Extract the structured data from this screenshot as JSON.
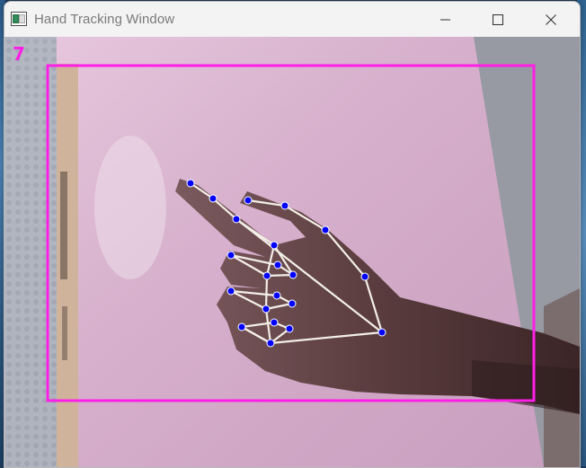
{
  "window": {
    "title": "Hand Tracking Window",
    "icon": "app-window-icon",
    "controls": {
      "minimize_icon": "minimize-icon",
      "maximize_icon": "maximize-icon",
      "close_icon": "close-icon"
    }
  },
  "camera": {
    "gesture_digit": "7",
    "overlay_color": "#ff1fe6",
    "landmark_color": "#0000ff",
    "connection_color": "#f3efe6"
  }
}
